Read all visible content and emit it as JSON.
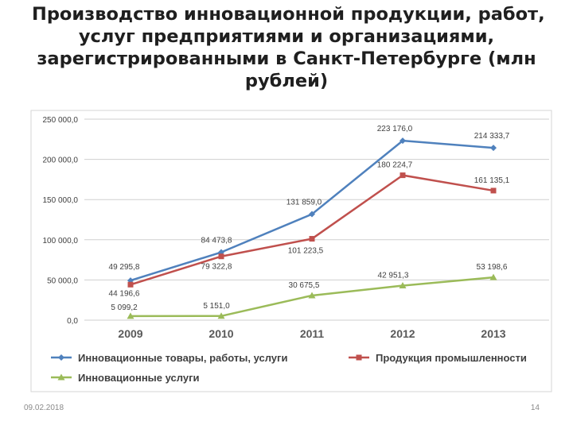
{
  "slide": {
    "title_lines": [
      "Производство инновационной продукции, работ,",
      "услуг предприятиями и организациями,",
      "зарегистрированными в Санкт-Петербурге (млн",
      "рублей)"
    ],
    "date": "09.02.2018",
    "page_number": "14"
  },
  "chart_data": {
    "type": "line",
    "categories": [
      "2009",
      "2010",
      "2011",
      "2012",
      "2013"
    ],
    "ylim": [
      0,
      250000
    ],
    "yticks": [
      0,
      50000,
      100000,
      150000,
      200000,
      250000
    ],
    "ytick_labels": [
      "0,0",
      "50 000,0",
      "100 000,0",
      "150 000,0",
      "200 000,0",
      "250 000,0"
    ],
    "grid": true,
    "legend_position": "bottom",
    "series": [
      {
        "name": "Инновационные товары, работы, услуги",
        "color": "#4f81bd",
        "marker": "diamond",
        "values": [
          49295.8,
          84473.8,
          131859.0,
          223176.0,
          214333.7
        ],
        "labels": [
          "49 295,8",
          "84 473,8",
          "131 859,0",
          "223 176,0",
          "214 333,7"
        ]
      },
      {
        "name": "Продукция промышленности",
        "color": "#c0504d",
        "marker": "square",
        "values": [
          44196.6,
          79322.8,
          101223.5,
          180224.7,
          161135.1
        ],
        "labels": [
          "44 196,6",
          "79 322,8",
          "101 223,5",
          "180 224,7",
          "161 135,1"
        ]
      },
      {
        "name": "Инновационные услуги",
        "color": "#9bbb59",
        "marker": "triangle",
        "values": [
          5099.2,
          5151.0,
          30675.5,
          42951.3,
          53198.6
        ],
        "labels": [
          "5 099,2",
          "5 151,0",
          "30 675,5",
          "42 951,3",
          "53 198,6"
        ]
      }
    ]
  }
}
